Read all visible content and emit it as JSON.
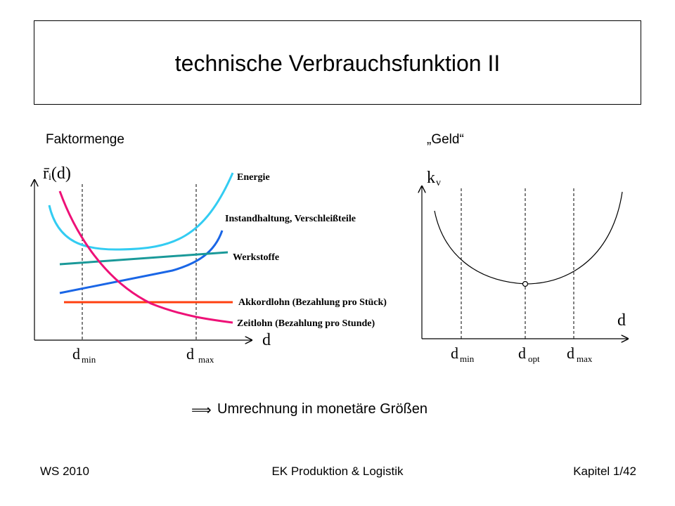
{
  "slide": {
    "title": "technische Verbrauchsfunktion II",
    "left_heading": "Faktormenge",
    "right_heading": "„Geld“",
    "conclusion_symbol": "⟹",
    "conclusion": "Umrechnung in monetäre Größen"
  },
  "left_chart": {
    "y_label": "r̄ᵢ(d)",
    "x_label": "d",
    "marker_labels": [
      "d",
      "min",
      "d",
      "max"
    ],
    "curves": [
      {
        "label": "Energie",
        "color": "#33ccf2"
      },
      {
        "label": "Instandhaltung, Verschleißteile",
        "color": "#1a66e6"
      },
      {
        "label": "Werkstoffe",
        "color": "#1a9999"
      },
      {
        "label": "Akkordlohn (Bezahlung pro Stück)",
        "color": "#ff4010"
      },
      {
        "label": "Zeitlohn (Bezahlung pro Stunde)",
        "color": "#ee1177"
      }
    ]
  },
  "right_chart": {
    "y_label_main": "k",
    "y_label_sub": "v",
    "x_label": "d",
    "marker_labels": [
      "d",
      "min",
      "d",
      "opt",
      "d",
      "max"
    ]
  },
  "footer": {
    "left": "WS 2010",
    "center": "EK Produktion & Logistik",
    "right": "Kapitel 1/42"
  }
}
